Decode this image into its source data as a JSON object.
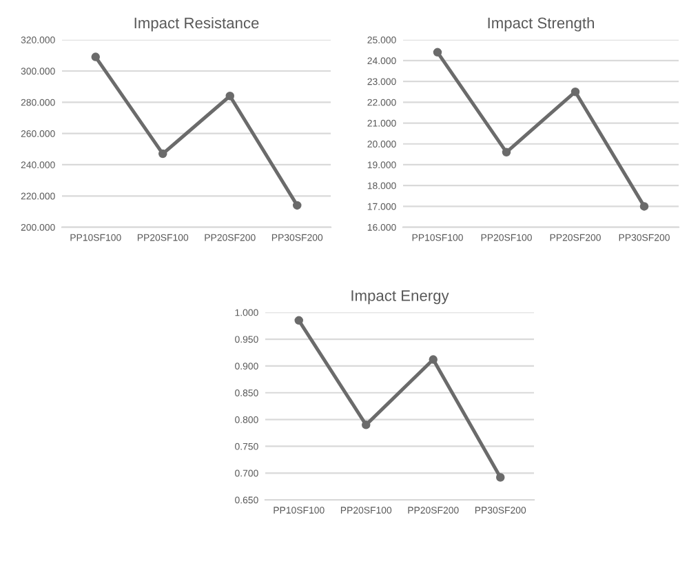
{
  "chart_data": [
    {
      "type": "line",
      "title": "Impact Resistance",
      "categories": [
        "PP10SF100",
        "PP20SF100",
        "PP20SF200",
        "PP30SF200"
      ],
      "series": [
        {
          "color": "#6b6b6b",
          "values": [
            309,
            247,
            284,
            214
          ]
        }
      ],
      "ylim": [
        200,
        320
      ],
      "yticks": [
        {
          "value": 200,
          "label": "200.000"
        },
        {
          "value": 220,
          "label": "220.000"
        },
        {
          "value": 240,
          "label": "240.000"
        },
        {
          "value": 260,
          "label": "260.000"
        },
        {
          "value": 280,
          "label": "280.000"
        },
        {
          "value": 300,
          "label": "300.000"
        },
        {
          "value": 320,
          "label": "320.000"
        }
      ],
      "grid": "y",
      "marker": "circle",
      "line_style": "solid"
    },
    {
      "type": "line",
      "title": "Impact Strength",
      "categories": [
        "PP10SF100",
        "PP20SF100",
        "PP20SF200",
        "PP30SF200"
      ],
      "series": [
        {
          "color": "#6b6b6b",
          "values": [
            24.4,
            19.6,
            22.5,
            17.0
          ]
        }
      ],
      "ylim": [
        16,
        25
      ],
      "yticks": [
        {
          "value": 16,
          "label": "16.000"
        },
        {
          "value": 17,
          "label": "17.000"
        },
        {
          "value": 18,
          "label": "18.000"
        },
        {
          "value": 19,
          "label": "19.000"
        },
        {
          "value": 20,
          "label": "20.000"
        },
        {
          "value": 21,
          "label": "21.000"
        },
        {
          "value": 22,
          "label": "22.000"
        },
        {
          "value": 23,
          "label": "23.000"
        },
        {
          "value": 24,
          "label": "24.000"
        },
        {
          "value": 25,
          "label": "25.000"
        }
      ],
      "grid": "y",
      "marker": "circle",
      "line_style": "solid"
    },
    {
      "type": "line",
      "title": "Impact Energy",
      "categories": [
        "PP10SF100",
        "PP20SF100",
        "PP20SF200",
        "PP30SF200"
      ],
      "series": [
        {
          "color": "#6b6b6b",
          "values": [
            0.985,
            0.79,
            0.912,
            0.692
          ]
        }
      ],
      "ylim": [
        0.65,
        1.0
      ],
      "yticks": [
        {
          "value": 0.65,
          "label": "0.650"
        },
        {
          "value": 0.7,
          "label": "0.700"
        },
        {
          "value": 0.75,
          "label": "0.750"
        },
        {
          "value": 0.8,
          "label": "0.800"
        },
        {
          "value": 0.85,
          "label": "0.850"
        },
        {
          "value": 0.9,
          "label": "0.900"
        },
        {
          "value": 0.95,
          "label": "0.950"
        },
        {
          "value": 1.0,
          "label": "1.000"
        }
      ],
      "grid": "y",
      "marker": "circle",
      "line_style": "solid"
    }
  ]
}
